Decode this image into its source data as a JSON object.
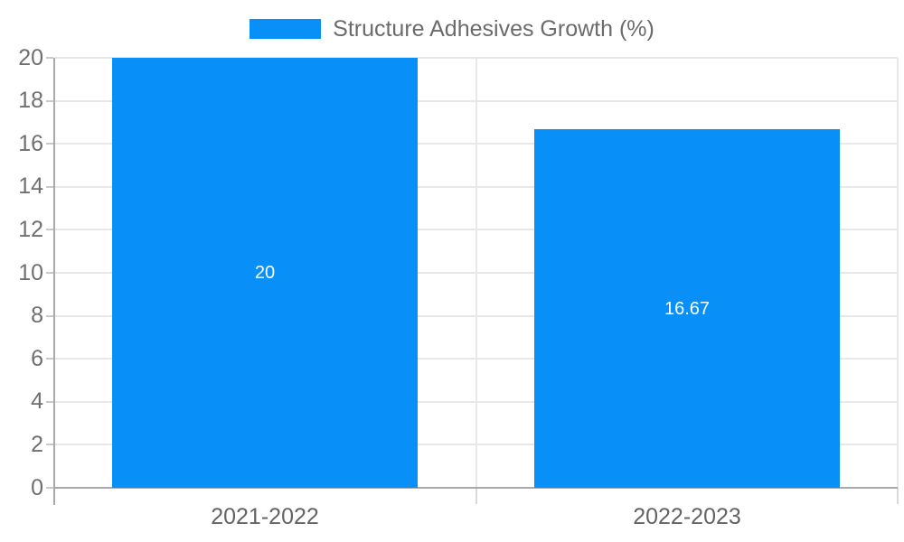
{
  "chart_data": {
    "type": "bar",
    "title": "Structure Adhesives Growth (%)",
    "legend": "Structure Adhesives Growth (%)",
    "legend_position": "top-center",
    "categories": [
      "2021-2022",
      "2022-2023"
    ],
    "series": [
      {
        "name": "Structure Adhesives Growth (%)",
        "values": [
          20,
          16.67
        ],
        "data_labels": [
          "20",
          "16.67"
        ]
      }
    ],
    "xlabel": "",
    "ylabel": "",
    "ylim": [
      0,
      20
    ],
    "ytick_step": 2,
    "ytick_labels": [
      "0",
      "2",
      "4",
      "6",
      "8",
      "10",
      "12",
      "14",
      "16",
      "18",
      "20"
    ],
    "grid": "on",
    "colors": {
      "bar": "#0990f8",
      "grid": "#e8e8e8",
      "axis": "#a9a9a9",
      "tick": "#c9c9c9",
      "boundary_tick": "#d9d9d9",
      "ytick_label": "#6f6f6f",
      "xtick_label": "#636363",
      "legend_text": "#6b6b6b",
      "bar_label": "#ffffff",
      "background": "#ffffff"
    }
  }
}
